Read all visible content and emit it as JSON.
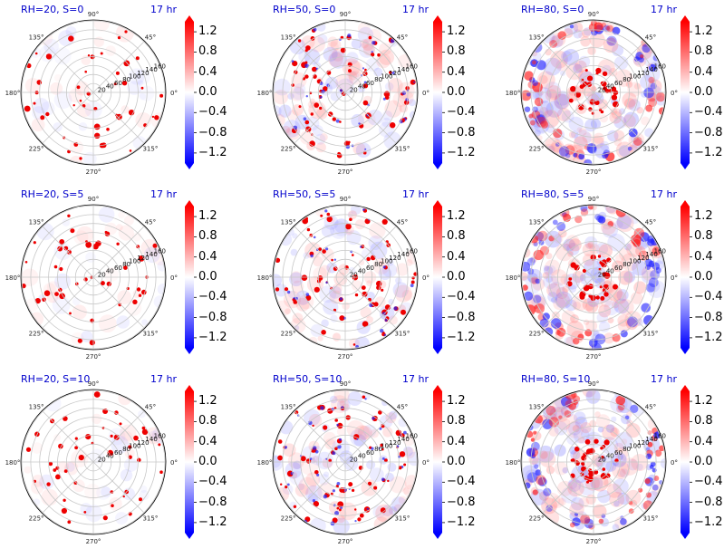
{
  "chart_data": [
    {
      "type": "polar-field",
      "title": "RH=20, S=0",
      "time_label": "17 hr",
      "angle_ticks": [
        "0°",
        "45°",
        "90°",
        "135°",
        "180°",
        "225°",
        "270°",
        "315°"
      ],
      "radial_ticks": [
        "20",
        "40",
        "60",
        "80",
        "100",
        "120",
        "140",
        "160"
      ],
      "colorbar": {
        "ticks": [
          "1.2",
          "0.8",
          "0.4",
          "0.0",
          "−0.4",
          "−0.8",
          "−1.2"
        ],
        "range": [
          -1.4,
          1.4
        ],
        "colormap": "bwr"
      },
      "style": "sparse"
    },
    {
      "type": "polar-field",
      "title": "RH=50, S=0",
      "time_label": "17 hr",
      "angle_ticks": [
        "0°",
        "45°",
        "90°",
        "135°",
        "180°",
        "225°",
        "270°",
        "315°"
      ],
      "radial_ticks": [
        "20",
        "40",
        "60",
        "80",
        "100",
        "120",
        "140",
        "160"
      ],
      "colorbar": {
        "ticks": [
          "1.2",
          "0.8",
          "0.4",
          "0.0",
          "−0.4",
          "−0.8",
          "−1.2"
        ],
        "range": [
          -1.4,
          1.4
        ],
        "colormap": "bwr"
      },
      "style": "medium"
    },
    {
      "type": "polar-field",
      "title": "RH=80, S=0",
      "time_label": "17 hr",
      "angle_ticks": [
        "0°",
        "45°",
        "90°",
        "135°",
        "180°",
        "225°",
        "270°",
        "315°"
      ],
      "radial_ticks": [
        "20",
        "40",
        "60",
        "80",
        "100",
        "120",
        "140",
        "160"
      ],
      "colorbar": {
        "ticks": [
          "1.2",
          "0.8",
          "0.4",
          "0.0",
          "−0.4",
          "−0.8",
          "−1.2"
        ],
        "range": [
          -1.4,
          1.4
        ],
        "colormap": "bwr"
      },
      "style": "dense"
    },
    {
      "type": "polar-field",
      "title": "RH=20, S=5",
      "time_label": "17 hr",
      "angle_ticks": [
        "0°",
        "45°",
        "90°",
        "135°",
        "180°",
        "225°",
        "270°",
        "315°"
      ],
      "radial_ticks": [
        "20",
        "40",
        "60",
        "80",
        "100",
        "120",
        "140",
        "160"
      ],
      "colorbar": {
        "ticks": [
          "1.2",
          "0.8",
          "0.4",
          "0.0",
          "−0.4",
          "−0.8",
          "−1.2"
        ],
        "range": [
          -1.4,
          1.4
        ],
        "colormap": "bwr"
      },
      "style": "sparse"
    },
    {
      "type": "polar-field",
      "title": "RH=50, S=5",
      "time_label": "17 hr",
      "angle_ticks": [
        "0°",
        "45°",
        "90°",
        "135°",
        "180°",
        "225°",
        "270°",
        "315°"
      ],
      "radial_ticks": [
        "20",
        "40",
        "60",
        "80",
        "100",
        "120",
        "140",
        "160"
      ],
      "colorbar": {
        "ticks": [
          "1.2",
          "0.8",
          "0.4",
          "0.0",
          "−0.4",
          "−0.8",
          "−1.2"
        ],
        "range": [
          -1.4,
          1.4
        ],
        "colormap": "bwr"
      },
      "style": "medium"
    },
    {
      "type": "polar-field",
      "title": "RH=80, S=5",
      "time_label": "17 hr",
      "angle_ticks": [
        "0°",
        "45°",
        "90°",
        "135°",
        "180°",
        "225°",
        "270°",
        "315°"
      ],
      "radial_ticks": [
        "20",
        "40",
        "60",
        "80",
        "100",
        "120",
        "140",
        "160"
      ],
      "colorbar": {
        "ticks": [
          "1.2",
          "0.8",
          "0.4",
          "0.0",
          "−0.4",
          "−0.8",
          "−1.2"
        ],
        "range": [
          -1.4,
          1.4
        ],
        "colormap": "bwr"
      },
      "style": "dense"
    },
    {
      "type": "polar-field",
      "title": "RH=20, S=10",
      "time_label": "17 hr",
      "angle_ticks": [
        "0°",
        "45°",
        "90°",
        "135°",
        "180°",
        "225°",
        "270°",
        "315°"
      ],
      "radial_ticks": [
        "20",
        "40",
        "60",
        "80",
        "100",
        "120",
        "140",
        "160"
      ],
      "colorbar": {
        "ticks": [
          "1.2",
          "0.8",
          "0.4",
          "0.0",
          "−0.4",
          "−0.8",
          "−1.2"
        ],
        "range": [
          -1.4,
          1.4
        ],
        "colormap": "bwr"
      },
      "style": "sparse"
    },
    {
      "type": "polar-field",
      "title": "RH=50, S=10",
      "time_label": "17 hr",
      "angle_ticks": [
        "0°",
        "45°",
        "90°",
        "135°",
        "180°",
        "225°",
        "270°",
        "315°"
      ],
      "radial_ticks": [
        "20",
        "40",
        "60",
        "80",
        "100",
        "120",
        "140",
        "160"
      ],
      "colorbar": {
        "ticks": [
          "1.2",
          "0.8",
          "0.4",
          "0.0",
          "−0.4",
          "−0.8",
          "−1.2"
        ],
        "range": [
          -1.4,
          1.4
        ],
        "colormap": "bwr"
      },
      "style": "medium"
    },
    {
      "type": "polar-field",
      "title": "RH=80, S=10",
      "time_label": "17 hr",
      "angle_ticks": [
        "0°",
        "45°",
        "90°",
        "135°",
        "180°",
        "225°",
        "270°",
        "315°"
      ],
      "radial_ticks": [
        "20",
        "40",
        "60",
        "80",
        "100",
        "120",
        "140",
        "160"
      ],
      "colorbar": {
        "ticks": [
          "1.2",
          "0.8",
          "0.4",
          "0.0",
          "−0.4",
          "−0.8",
          "−1.2"
        ],
        "range": [
          -1.4,
          1.4
        ],
        "colormap": "bwr"
      },
      "style": "dense"
    }
  ],
  "colors": {
    "title": "#0000cc",
    "positive": "#ff0000",
    "negative": "#0000ff",
    "grid": "#c8c8c8"
  }
}
